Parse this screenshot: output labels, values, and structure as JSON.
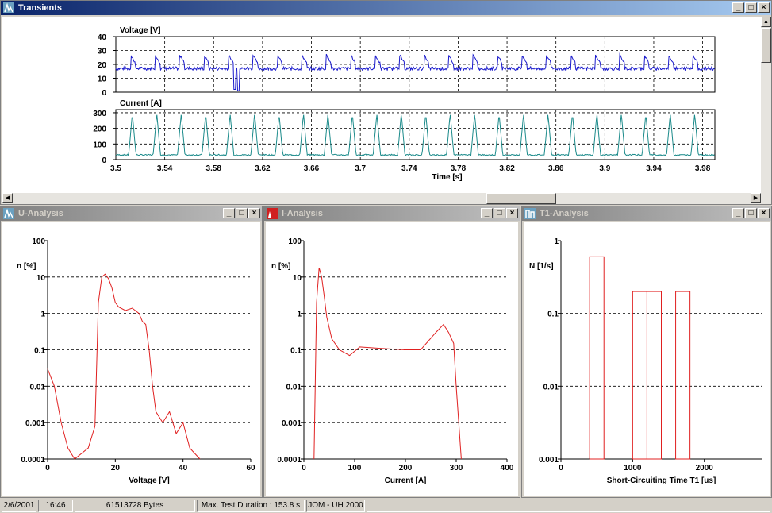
{
  "transients": {
    "title": "Transients",
    "voltage_label": "Voltage [V]",
    "voltage_ticks": [
      "40",
      "30",
      "20",
      "10",
      "0"
    ],
    "current_label": "Current [A]",
    "current_ticks": [
      "300",
      "200",
      "100",
      "0"
    ],
    "x_ticks": [
      "3.5",
      "3.54",
      "3.58",
      "3.62",
      "3.66",
      "3.7",
      "3.74",
      "3.78",
      "3.82",
      "3.86",
      "3.9",
      "3.94",
      "3.98"
    ],
    "x_label": "Time [s]"
  },
  "u_analysis": {
    "title": "U-Analysis",
    "ylabel": "n [%]",
    "yticks": [
      "100",
      "10",
      "1",
      "0.1",
      "0.01",
      "0.001",
      "0.0001"
    ],
    "xticks": [
      "0",
      "20",
      "40",
      "60"
    ],
    "xlabel": "Voltage [V]"
  },
  "i_analysis": {
    "title": "I-Analysis",
    "ylabel": "n [%]",
    "yticks": [
      "100",
      "10",
      "1",
      "0.1",
      "0.01",
      "0.001",
      "0.0001"
    ],
    "xticks": [
      "0",
      "100",
      "200",
      "300",
      "400"
    ],
    "xlabel": "Current [A]"
  },
  "t1_analysis": {
    "title": "T1-Analysis",
    "ylabel": "N [1/s]",
    "yticks": [
      "1",
      "0.1",
      "0.01",
      "0.001"
    ],
    "xticks": [
      "0",
      "1000",
      "2000"
    ],
    "xlabel": "Short-Circuiting Time T1 [us]"
  },
  "status": {
    "date": "2/6/2001",
    "time": "16:46",
    "bytes": "61513728 Bytes",
    "duration": "Max. Test Duration : 153.8 s",
    "credit": "JOM - UH 2000"
  },
  "colors": {
    "voltage": "#1a1acc",
    "current": "#1a8a8a",
    "analysis": "#e02020"
  },
  "chart_data": [
    {
      "type": "line",
      "title": "Voltage [V]",
      "ylim": [
        0,
        40
      ],
      "xlim": [
        3.5,
        3.99
      ],
      "x": [
        3.5,
        3.52,
        3.54,
        3.56,
        3.58,
        3.6,
        3.62,
        3.64,
        3.66,
        3.68,
        3.7,
        3.72,
        3.74,
        3.76,
        3.78,
        3.8,
        3.82,
        3.84,
        3.86,
        3.88,
        3.9,
        3.92,
        3.94,
        3.96,
        3.98
      ],
      "series": [
        {
          "name": "Voltage [V]",
          "baseline": 17,
          "peak": 29
        }
      ]
    },
    {
      "type": "line",
      "title": "Current [A]",
      "ylim": [
        0,
        320
      ],
      "xlim": [
        3.5,
        3.99
      ],
      "series": [
        {
          "name": "Current [A]",
          "baseline": 30,
          "peak": 290
        }
      ]
    },
    {
      "type": "line",
      "xlabel": "Voltage [V]",
      "ylabel": "n [%]",
      "yscale": "log",
      "ylim": [
        0.0001,
        100
      ],
      "xlim": [
        0,
        60
      ],
      "series": [
        {
          "name": "U",
          "points": [
            [
              0,
              0.03
            ],
            [
              2,
              0.01
            ],
            [
              4,
              0.001
            ],
            [
              6,
              0.0002
            ],
            [
              8,
              0.0001
            ],
            [
              12,
              0.0002
            ],
            [
              14,
              0.0008
            ],
            [
              15,
              2
            ],
            [
              16,
              10
            ],
            [
              17,
              12
            ],
            [
              18,
              9
            ],
            [
              19,
              5
            ],
            [
              20,
              2
            ],
            [
              21,
              1.5
            ],
            [
              23,
              1.2
            ],
            [
              25,
              1.4
            ],
            [
              27,
              1
            ],
            [
              28,
              0.6
            ],
            [
              29,
              0.5
            ],
            [
              30,
              0.1
            ],
            [
              31,
              0.01
            ],
            [
              32,
              0.002
            ],
            [
              34,
              0.001
            ],
            [
              36,
              0.002
            ],
            [
              38,
              0.0005
            ],
            [
              40,
              0.001
            ],
            [
              42,
              0.0002
            ],
            [
              45,
              0.0001
            ]
          ]
        }
      ]
    },
    {
      "type": "line",
      "xlabel": "Current [A]",
      "ylabel": "n [%]",
      "yscale": "log",
      "ylim": [
        0.0001,
        100
      ],
      "xlim": [
        0,
        400
      ],
      "series": [
        {
          "name": "I",
          "points": [
            [
              20,
              0.0001
            ],
            [
              25,
              2
            ],
            [
              30,
              18
            ],
            [
              35,
              10
            ],
            [
              40,
              3
            ],
            [
              45,
              0.8
            ],
            [
              55,
              0.2
            ],
            [
              70,
              0.1
            ],
            [
              90,
              0.07
            ],
            [
              110,
              0.12
            ],
            [
              150,
              0.11
            ],
            [
              200,
              0.1
            ],
            [
              230,
              0.1
            ],
            [
              260,
              0.3
            ],
            [
              275,
              0.5
            ],
            [
              285,
              0.3
            ],
            [
              295,
              0.15
            ],
            [
              300,
              0.01
            ],
            [
              305,
              0.001
            ],
            [
              310,
              0.0001
            ]
          ]
        }
      ]
    },
    {
      "type": "bar",
      "xlabel": "Short-Circuiting Time T1 [us]",
      "ylabel": "N [1/s]",
      "yscale": "log",
      "ylim": [
        0.001,
        1
      ],
      "xlim": [
        0,
        2800
      ],
      "bars": [
        {
          "x0": 400,
          "x1": 600,
          "value": 0.6
        },
        {
          "x0": 1000,
          "x1": 1200,
          "value": 0.2
        },
        {
          "x0": 1200,
          "x1": 1400,
          "value": 0.2
        },
        {
          "x0": 1600,
          "x1": 1800,
          "value": 0.2
        }
      ]
    }
  ]
}
